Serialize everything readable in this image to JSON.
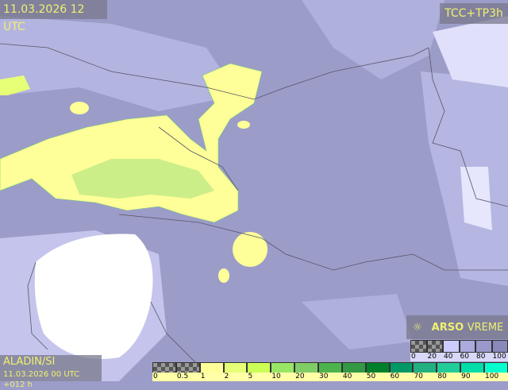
{
  "header": {
    "datetime": "11.03.2026 12 UTC",
    "parameter": "TCC+TP3h"
  },
  "footer": {
    "model": "ALADIN/SI",
    "run": "11.03.2026 00 UTC +012 h"
  },
  "brand": {
    "name_bold": "ARSO",
    "name_light": "VREME",
    "icon": "sun-cloud-icon"
  },
  "precip_legend": {
    "ticks": [
      "0",
      "0.5",
      "1",
      "2",
      "5",
      "10",
      "20",
      "30",
      "40",
      "50",
      "60",
      "70",
      "80",
      "90",
      "100"
    ],
    "colors": [
      "checker",
      "checker",
      "#ffff99",
      "#e6ff77",
      "#ccff55",
      "#99e566",
      "#80cc66",
      "#4db34d",
      "#339944",
      "#00802b",
      "#009966",
      "#22b080",
      "#22cc99",
      "#00dda8",
      "#00ffcc"
    ]
  },
  "cloud_legend": {
    "ticks": [
      "0",
      "20",
      "40",
      "60",
      "80",
      "100"
    ],
    "colors": [
      "checker",
      "checker",
      "#ccccff",
      "#aaaadd",
      "#9999cc",
      "#8888bb"
    ]
  },
  "colors": {
    "land": "#9c9cc9",
    "clear": "#ffffff",
    "precip_light": "#ffff99",
    "precip_mid": "#ccee88"
  }
}
